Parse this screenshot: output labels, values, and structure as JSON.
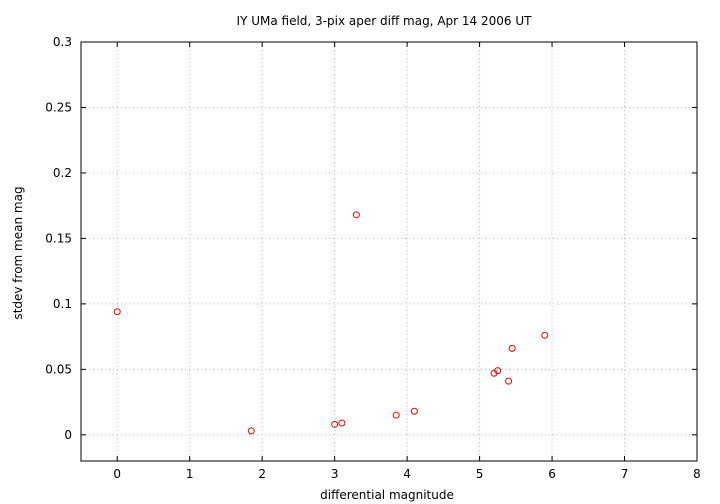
{
  "chart_data": {
    "type": "scatter",
    "title": "IY UMa field,  3-pix aper diff mag, Apr 14 2006 UT",
    "xlabel": "differential magnitude",
    "ylabel": "stdev from mean mag",
    "xlim": [
      -0.5,
      8
    ],
    "ylim": [
      -0.02,
      0.3
    ],
    "xticks": [
      "0",
      "1",
      "2",
      "3",
      "4",
      "5",
      "6",
      "7",
      "8"
    ],
    "xtick_values": [
      0,
      1,
      2,
      3,
      4,
      5,
      6,
      7,
      8
    ],
    "yticks": [
      "0",
      "0.05",
      "0.1",
      "0.15",
      "0.2",
      "0.25",
      "0.3"
    ],
    "ytick_values": [
      0,
      0.05,
      0.1,
      0.15,
      0.2,
      0.25,
      0.3
    ],
    "grid": true,
    "marker": "open-circle",
    "marker_color": "#ff0000",
    "points": [
      {
        "x": 0.0,
        "y": 0.094
      },
      {
        "x": 1.85,
        "y": 0.003
      },
      {
        "x": 3.0,
        "y": 0.008
      },
      {
        "x": 3.1,
        "y": 0.009
      },
      {
        "x": 3.3,
        "y": 0.168
      },
      {
        "x": 3.85,
        "y": 0.015
      },
      {
        "x": 4.1,
        "y": 0.018
      },
      {
        "x": 5.2,
        "y": 0.047
      },
      {
        "x": 5.25,
        "y": 0.049
      },
      {
        "x": 5.4,
        "y": 0.041
      },
      {
        "x": 5.45,
        "y": 0.066
      },
      {
        "x": 5.9,
        "y": 0.076
      }
    ]
  }
}
